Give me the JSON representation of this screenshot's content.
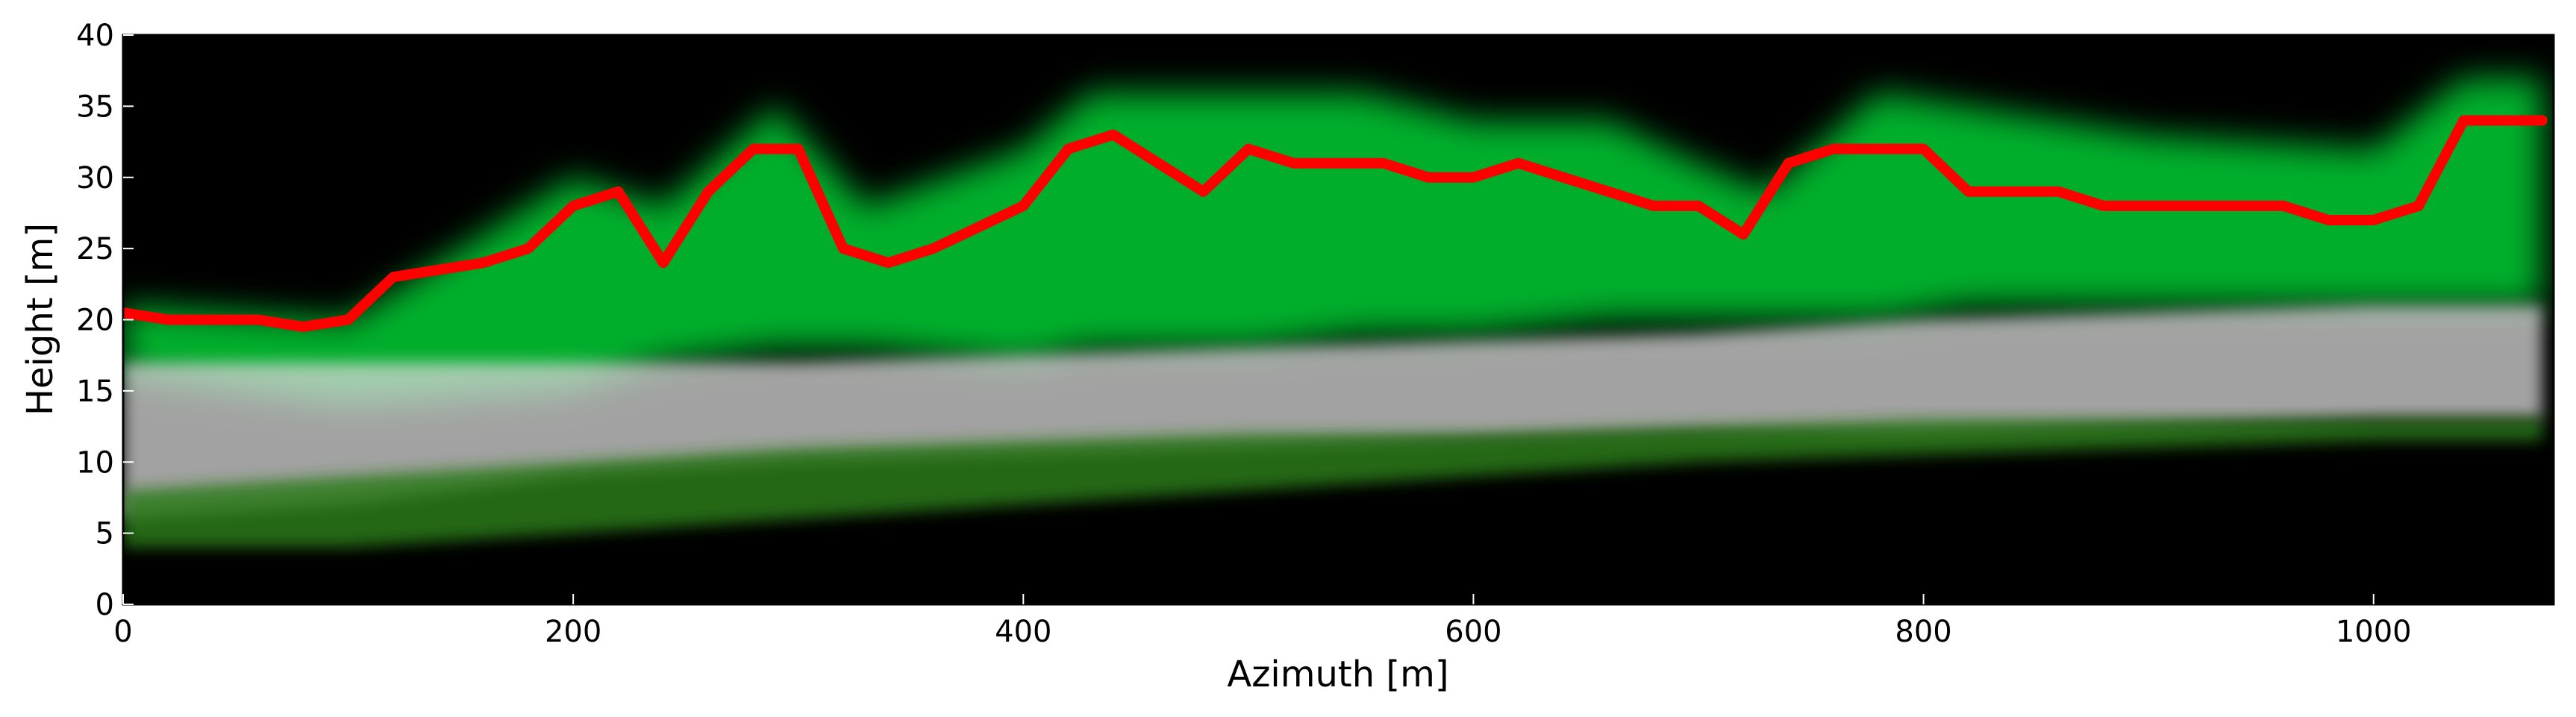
{
  "chart_data": {
    "type": "heatmap",
    "title": "",
    "xlabel": "Azimuth [m]",
    "ylabel": "Height [m]",
    "xlim": [
      0,
      1080
    ],
    "ylim": [
      0,
      40
    ],
    "x_ticks": [
      0,
      200,
      400,
      600,
      800,
      1000
    ],
    "y_ticks": [
      0,
      5,
      10,
      15,
      20,
      25,
      30,
      35,
      40
    ],
    "grid": false,
    "legend": "none",
    "background_color": "#000000",
    "series": [
      {
        "color": "#ff0000",
        "type": "line",
        "x": [
          0,
          20,
          40,
          60,
          80,
          100,
          120,
          140,
          160,
          180,
          200,
          220,
          240,
          260,
          280,
          300,
          320,
          340,
          360,
          380,
          400,
          420,
          440,
          460,
          480,
          500,
          520,
          540,
          560,
          580,
          600,
          620,
          640,
          660,
          680,
          700,
          720,
          740,
          760,
          780,
          800,
          820,
          840,
          860,
          880,
          900,
          920,
          940,
          960,
          980,
          1000,
          1020,
          1040,
          1060,
          1075
        ],
        "y": [
          20.5,
          20,
          20,
          20,
          19.5,
          20,
          23,
          23.5,
          24,
          25,
          28,
          29,
          24,
          29,
          32,
          32,
          25,
          24,
          25,
          26.5,
          28,
          32,
          33,
          31,
          29,
          32,
          31,
          31,
          31,
          30,
          30,
          31,
          30,
          29,
          28,
          28,
          26,
          31,
          32,
          32,
          32,
          29,
          29,
          29,
          28,
          28,
          28,
          28,
          28,
          27,
          27,
          28,
          34,
          34,
          34
        ]
      }
    ],
    "heatmap_layers": [
      {
        "color": "#00cc33",
        "band": "canopy",
        "x": [
          0,
          100,
          200,
          240,
          290,
          330,
          400,
          430,
          500,
          550,
          600,
          660,
          700,
          730,
          780,
          820,
          900,
          1000,
          1040,
          1075
        ],
        "upper": [
          21,
          20,
          30,
          28,
          35,
          28,
          32,
          36,
          36,
          36,
          34,
          34,
          31,
          29,
          36,
          35,
          33,
          32,
          37,
          37
        ],
        "lower": [
          16,
          14,
          15,
          17,
          18,
          18,
          17,
          18,
          18,
          19,
          19,
          20,
          20,
          20,
          20,
          21,
          21,
          21,
          21,
          21
        ]
      },
      {
        "color": "#d8d8d8",
        "band": "ground",
        "x": [
          0,
          100,
          200,
          300,
          400,
          500,
          600,
          700,
          800,
          900,
          1000,
          1075
        ],
        "upper": [
          17,
          17,
          17,
          17,
          17.5,
          18,
          18.5,
          19,
          20,
          20.5,
          21,
          21
        ],
        "lower": [
          6,
          7,
          9,
          10,
          10.5,
          11,
          11.5,
          12,
          12,
          12.5,
          13,
          13
        ]
      },
      {
        "color": "#2a7a1a",
        "band": "understory",
        "x": [
          0,
          100,
          200,
          300,
          400,
          500,
          600,
          700,
          800,
          900,
          1000,
          1075
        ],
        "upper": [
          8,
          9,
          10,
          11,
          11.5,
          12,
          12,
          12.5,
          13,
          13,
          13,
          13
        ],
        "lower": [
          4,
          4,
          5,
          6,
          7,
          8,
          9,
          10,
          10.5,
          11,
          11.5,
          11.5
        ]
      }
    ]
  }
}
